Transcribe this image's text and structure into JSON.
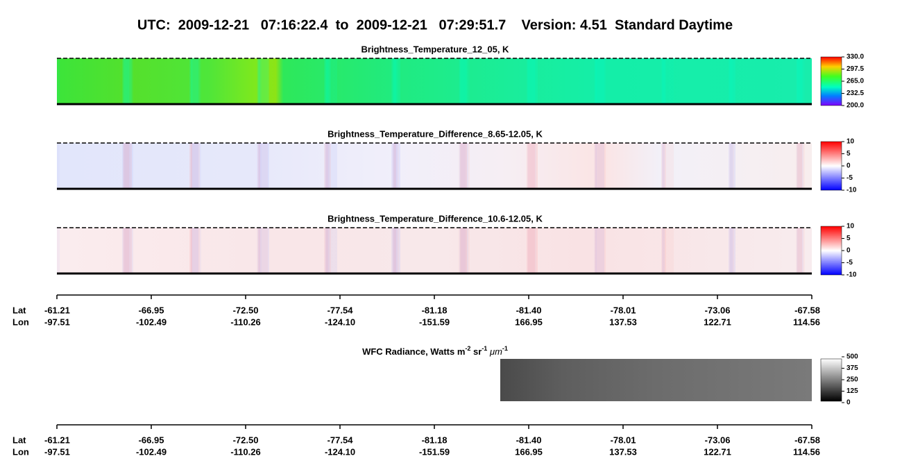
{
  "header": {
    "title": "UTC:  2009-12-21   07:16:22.4  to  2009-12-21   07:29:51.7    Version: 4.51  Standard Daytime"
  },
  "panels": [
    {
      "title": "Brightness_Temperature_12_05, K",
      "colorbar": [
        "330.0",
        "297.5",
        "265.0",
        "232.5",
        "200.0"
      ]
    },
    {
      "title": "Brightness_Temperature_Difference_8.65-12.05, K",
      "colorbar": [
        "10",
        "5",
        "0",
        "-5",
        "-10"
      ]
    },
    {
      "title": "Brightness_Temperature_Difference_10.6-12.05, K",
      "colorbar": [
        "10",
        "5",
        "0",
        "-5",
        "-10"
      ]
    }
  ],
  "axes": [
    {
      "lat_label": "Lat",
      "lon_label": "Lon",
      "lat": [
        "-61.21",
        "-66.95",
        "-72.50",
        "-77.54",
        "-81.18",
        "-81.40",
        "-78.01",
        "-73.06",
        "-67.58"
      ],
      "lon": [
        "-97.51",
        "-102.49",
        "-110.26",
        "-124.10",
        "-151.59",
        "166.95",
        "137.53",
        "122.71",
        "114.56"
      ]
    },
    {
      "lat_label": "Lat",
      "lon_label": "Lon",
      "lat": [
        "-61.21",
        "-66.95",
        "-72.50",
        "-77.54",
        "-81.18",
        "-81.40",
        "-78.01",
        "-73.06",
        "-67.58"
      ],
      "lon": [
        "-97.51",
        "-102.49",
        "-110.26",
        "-124.10",
        "-151.59",
        "166.95",
        "137.53",
        "122.71",
        "114.56"
      ]
    }
  ],
  "wfc": {
    "title_parts": [
      "WFC Radiance, Watts m",
      "-2",
      " sr",
      "-1",
      " ",
      "μm",
      "-1"
    ],
    "colorbar": [
      "500",
      "375",
      "250",
      "125",
      "0"
    ]
  }
}
